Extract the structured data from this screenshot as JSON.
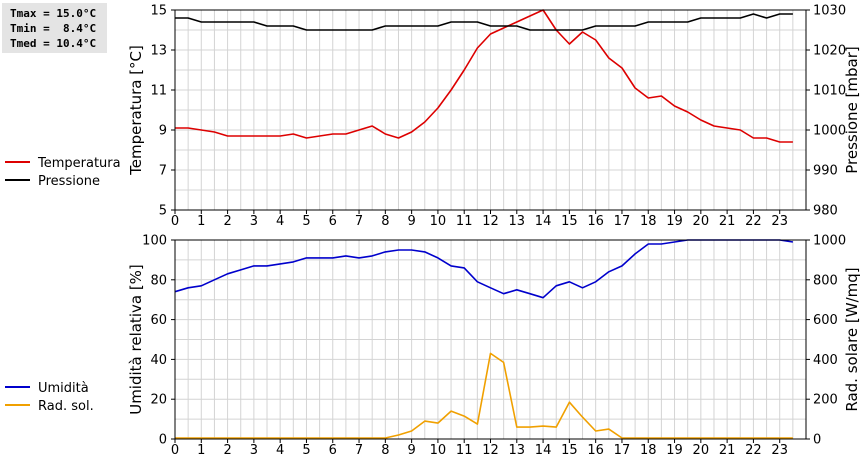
{
  "stats": {
    "tmax": "Tmax = 15.0°C",
    "tmin": "Tmin =  8.4°C",
    "tmed": "Tmed = 10.4°C"
  },
  "chart_data": [
    {
      "type": "line",
      "x_ticks": [
        0,
        1,
        2,
        3,
        4,
        5,
        6,
        7,
        8,
        9,
        10,
        11,
        12,
        13,
        14,
        15,
        16,
        17,
        18,
        19,
        20,
        21,
        22,
        23
      ],
      "xlim": [
        0,
        24
      ],
      "ylabel": "Temperatura [°C]",
      "ylim": [
        5,
        15
      ],
      "yticks": [
        5,
        7,
        9,
        11,
        13,
        15
      ],
      "y2label": "Pressione [mbar]",
      "y2lim": [
        980,
        1030
      ],
      "y2ticks": [
        980,
        990,
        1000,
        1010,
        1020,
        1030
      ],
      "grid": true,
      "legend": "left",
      "series": [
        {
          "name": "Temperatura",
          "axis": "y",
          "color": "#dd0000",
          "x": [
            0,
            0.5,
            1,
            1.5,
            2,
            2.5,
            3,
            3.5,
            4,
            4.5,
            5,
            5.5,
            6,
            6.5,
            7,
            7.5,
            8,
            8.5,
            9,
            9.5,
            10,
            10.5,
            11,
            11.5,
            12,
            12.5,
            13,
            13.5,
            14,
            14.5,
            15,
            15.5,
            16,
            16.5,
            17,
            17.5,
            18,
            18.5,
            19,
            19.5,
            20,
            20.5,
            21,
            21.5,
            22,
            22.5,
            23,
            23.5
          ],
          "values": [
            9.1,
            9.1,
            9.0,
            8.9,
            8.7,
            8.7,
            8.7,
            8.7,
            8.7,
            8.8,
            8.6,
            8.7,
            8.8,
            8.8,
            9.0,
            9.2,
            8.8,
            8.6,
            8.9,
            9.4,
            10.1,
            11.0,
            12.0,
            13.1,
            13.8,
            14.1,
            14.4,
            14.7,
            15.0,
            14.0,
            13.3,
            13.9,
            13.5,
            12.6,
            12.1,
            11.1,
            10.6,
            10.7,
            10.2,
            9.9,
            9.5,
            9.2,
            9.1,
            9.0,
            8.6,
            8.6,
            8.4,
            8.4
          ]
        },
        {
          "name": "Pressione",
          "axis": "y2",
          "color": "#000000",
          "x": [
            0,
            0.5,
            1,
            1.5,
            2,
            2.5,
            3,
            3.5,
            4,
            4.5,
            5,
            5.5,
            6,
            6.5,
            7,
            7.5,
            8,
            8.5,
            9,
            9.5,
            10,
            10.5,
            11,
            11.5,
            12,
            12.5,
            13,
            13.5,
            14,
            14.5,
            15,
            15.5,
            16,
            16.5,
            17,
            17.5,
            18,
            18.5,
            19,
            19.5,
            20,
            20.5,
            21,
            21.5,
            22,
            22.5,
            23,
            23.5
          ],
          "values": [
            1028,
            1028,
            1027,
            1027,
            1027,
            1027,
            1027,
            1026,
            1026,
            1026,
            1025,
            1025,
            1025,
            1025,
            1025,
            1025,
            1026,
            1026,
            1026,
            1026,
            1026,
            1027,
            1027,
            1027,
            1026,
            1026,
            1026,
            1025,
            1025,
            1025,
            1025,
            1025,
            1026,
            1026,
            1026,
            1026,
            1027,
            1027,
            1027,
            1027,
            1028,
            1028,
            1028,
            1028,
            1029,
            1028,
            1029,
            1029
          ]
        }
      ]
    },
    {
      "type": "line",
      "x_ticks": [
        0,
        1,
        2,
        3,
        4,
        5,
        6,
        7,
        8,
        9,
        10,
        11,
        12,
        13,
        14,
        15,
        16,
        17,
        18,
        19,
        20,
        21,
        22,
        23
      ],
      "xlim": [
        0,
        24
      ],
      "ylabel": "Umidità relativa [%]",
      "ylim": [
        0,
        100
      ],
      "yticks": [
        0,
        20,
        40,
        60,
        80,
        100
      ],
      "y2label": "Rad. solare [W/mq]",
      "y2lim": [
        0,
        1000
      ],
      "y2ticks": [
        0,
        200,
        400,
        600,
        800,
        1000
      ],
      "grid": true,
      "legend": "left",
      "series": [
        {
          "name": "Umidità",
          "axis": "y",
          "color": "#0000cc",
          "x": [
            0,
            0.5,
            1,
            1.5,
            2,
            2.5,
            3,
            3.5,
            4,
            4.5,
            5,
            5.5,
            6,
            6.5,
            7,
            7.5,
            8,
            8.5,
            9,
            9.5,
            10,
            10.5,
            11,
            11.5,
            12,
            12.5,
            13,
            13.5,
            14,
            14.5,
            15,
            15.5,
            16,
            16.5,
            17,
            17.5,
            18,
            18.5,
            19,
            19.5,
            20,
            20.5,
            21,
            21.5,
            22,
            22.5,
            23,
            23.5
          ],
          "values": [
            74,
            76,
            77,
            80,
            83,
            85,
            87,
            87,
            88,
            89,
            91,
            91,
            91,
            92,
            91,
            92,
            94,
            95,
            95,
            94,
            91,
            87,
            86,
            79,
            76,
            73,
            75,
            73,
            71,
            77,
            79,
            76,
            79,
            84,
            87,
            93,
            98,
            98,
            99,
            100,
            100,
            100,
            100,
            100,
            100,
            100,
            100,
            99
          ]
        },
        {
          "name": "Rad. sol.",
          "axis": "y2",
          "color": "#f0a000",
          "x": [
            0,
            0.5,
            1,
            1.5,
            2,
            2.5,
            3,
            3.5,
            4,
            4.5,
            5,
            5.5,
            6,
            6.5,
            7,
            7.5,
            8,
            8.5,
            9,
            9.5,
            10,
            10.5,
            11,
            11.5,
            12,
            12.5,
            13,
            13.5,
            14,
            14.5,
            15,
            15.5,
            16,
            16.5,
            17,
            17.5,
            18,
            18.5,
            19,
            19.5,
            20,
            20.5,
            21,
            21.5,
            22,
            22.5,
            23,
            23.5
          ],
          "values": [
            5,
            5,
            5,
            5,
            5,
            5,
            5,
            5,
            5,
            5,
            5,
            5,
            5,
            5,
            5,
            5,
            5,
            20,
            40,
            90,
            80,
            140,
            115,
            75,
            430,
            385,
            60,
            60,
            65,
            60,
            185,
            110,
            40,
            50,
            5,
            5,
            5,
            5,
            5,
            5,
            5,
            5,
            5,
            5,
            5,
            5,
            5,
            5
          ]
        }
      ]
    }
  ]
}
